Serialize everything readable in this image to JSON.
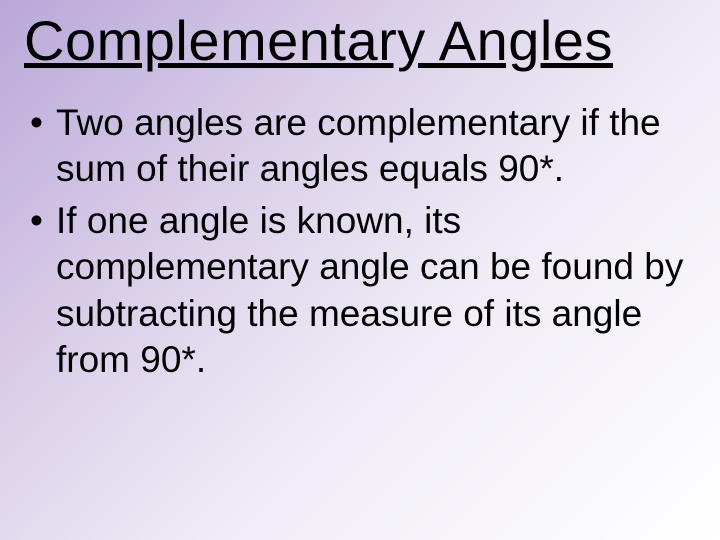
{
  "slide": {
    "title": "Complementary Angles",
    "bullets": [
      "Two angles are complementary if the sum of their angles equals 90*.",
      "If one angle is known, its complementary angle can be found by subtracting the measure of its angle from 90*."
    ],
    "background_gradient": {
      "start_color": "#b8a8d8",
      "mid_color": "#d8cce8",
      "mid2_color": "#f0ecf6",
      "end_color": "#ffffff",
      "angle_deg": 135
    },
    "text_color": "#000000",
    "title_fontsize": 56,
    "body_fontsize": 37,
    "font_family": "Comic Sans MS"
  }
}
